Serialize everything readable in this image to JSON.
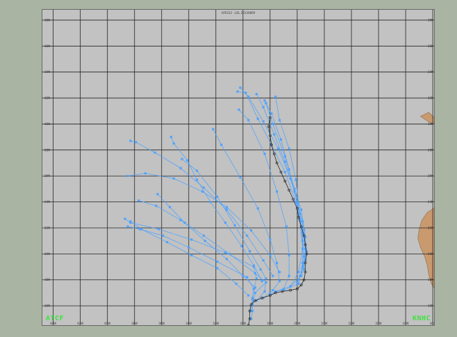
{
  "map": {
    "title": "AF6312 - LOL 20130809",
    "left_label": "ATCF",
    "right_label": "KNHC"
  },
  "colors": {
    "background": "#a9b4a2",
    "ocean": "#c2c2c2",
    "grid": "#222222",
    "forecast_tracks": "#4fa3ff",
    "best_track": "#222222",
    "land": "#c99a6e",
    "label_text": "#3fe23f"
  },
  "axes": {
    "longitude_ticks": [
      "44W",
      "42W",
      "40W",
      "38W",
      "36W",
      "34W",
      "32W",
      "30W",
      "28W",
      "26W",
      "24W",
      "22W",
      "20W",
      "18W",
      "16W"
    ],
    "latitude_ticks_left": [
      "38N",
      "36N",
      "34N",
      "32N",
      "30N",
      "28N",
      "26N",
      "24N",
      "22N",
      "20N",
      "18N",
      "16N"
    ],
    "latitude_ticks_right": [
      "38N",
      "36N",
      "34N",
      "32N",
      "30N",
      "28N",
      "26N",
      "24N",
      "22N",
      "20N",
      "18N",
      "16N"
    ],
    "lon_range": [
      -44.8,
      -15.8
    ],
    "lat_range": [
      14.4,
      38.8
    ]
  },
  "forecast_tracks": [
    [
      [
        -29.4,
        15.0
      ],
      [
        -29.3,
        15.6
      ],
      [
        -29.3,
        16.5
      ],
      [
        -29.2,
        17.3
      ],
      [
        -29.0,
        18.1
      ],
      [
        -29.2,
        19.0
      ],
      [
        -31.3,
        20.1
      ],
      [
        -33.8,
        21.1
      ],
      [
        -36.2,
        21.9
      ],
      [
        -38.3,
        22.4
      ],
      [
        -38.7,
        22.7
      ]
    ],
    [
      [
        -29.4,
        15.6
      ],
      [
        -29.3,
        16.6
      ],
      [
        -29.2,
        17.3
      ],
      [
        -29.7,
        18.2
      ],
      [
        -31.9,
        19.4
      ],
      [
        -34.0,
        20.5
      ],
      [
        -35.9,
        21.4
      ],
      [
        -37.6,
        21.9
      ],
      [
        -38.5,
        22.1
      ]
    ],
    [
      [
        -29.3,
        16.1
      ],
      [
        -29.1,
        17.0
      ],
      [
        -28.3,
        17.8
      ],
      [
        -29.1,
        18.5
      ],
      [
        -31.0,
        20.0
      ],
      [
        -32.9,
        21.4
      ],
      [
        -34.6,
        22.6
      ],
      [
        -36.4,
        23.7
      ],
      [
        -37.7,
        24.1
      ]
    ],
    [
      [
        -29.0,
        16.4
      ],
      [
        -28.4,
        17.1
      ],
      [
        -28.3,
        18.1
      ],
      [
        -28.7,
        18.8
      ],
      [
        -29.5,
        20.2
      ],
      [
        -30.6,
        22.2
      ],
      [
        -31.9,
        24.4
      ],
      [
        -33.4,
        26.4
      ],
      [
        -34.5,
        27.3
      ]
    ],
    [
      [
        -28.5,
        16.6
      ],
      [
        -27.8,
        17.2
      ],
      [
        -27.3,
        17.9
      ],
      [
        -27.5,
        19.3
      ],
      [
        -28.0,
        21.1
      ],
      [
        -28.9,
        23.5
      ],
      [
        -30.2,
        25.9
      ],
      [
        -31.6,
        28.4
      ],
      [
        -32.2,
        29.6
      ]
    ],
    [
      [
        -28.0,
        16.9
      ],
      [
        -27.0,
        17.3
      ],
      [
        -26.6,
        18.3
      ],
      [
        -26.6,
        19.9
      ],
      [
        -26.8,
        22.1
      ],
      [
        -27.5,
        24.8
      ],
      [
        -28.4,
        27.7
      ],
      [
        -29.6,
        30.3
      ],
      [
        -30.3,
        31.1
      ]
    ],
    [
      [
        -27.6,
        17.1
      ],
      [
        -26.5,
        17.5
      ],
      [
        -25.9,
        18.6
      ],
      [
        -25.6,
        20.4
      ],
      [
        -25.8,
        22.6
      ],
      [
        -26.2,
        25.0
      ],
      [
        -26.9,
        27.5
      ],
      [
        -27.8,
        30.0
      ],
      [
        -28.3,
        31.6
      ]
    ],
    [
      [
        -27.0,
        17.2
      ],
      [
        -25.9,
        17.7
      ],
      [
        -25.6,
        19.3
      ],
      [
        -25.6,
        21.0
      ],
      [
        -25.8,
        23.1
      ],
      [
        -26.1,
        25.7
      ],
      [
        -26.6,
        28.1
      ],
      [
        -27.3,
        30.3
      ],
      [
        -27.6,
        32.1
      ]
    ],
    [
      [
        -26.5,
        17.5
      ],
      [
        -25.7,
        18.3
      ],
      [
        -25.5,
        19.8
      ],
      [
        -25.6,
        21.6
      ],
      [
        -26.0,
        23.9
      ],
      [
        -26.6,
        26.5
      ],
      [
        -27.2,
        28.8
      ],
      [
        -27.9,
        30.8
      ],
      [
        -28.4,
        31.8
      ]
    ],
    [
      [
        -26.0,
        17.8
      ],
      [
        -25.5,
        18.8
      ],
      [
        -25.4,
        20.4
      ],
      [
        -25.6,
        22.5
      ],
      [
        -26.2,
        24.8
      ],
      [
        -26.9,
        27.1
      ],
      [
        -27.7,
        29.2
      ],
      [
        -28.5,
        31.3
      ],
      [
        -29.0,
        32.3
      ]
    ],
    [
      [
        -25.8,
        18.3
      ],
      [
        -25.4,
        19.5
      ],
      [
        -25.4,
        21.3
      ],
      [
        -25.7,
        23.4
      ],
      [
        -26.5,
        25.8
      ],
      [
        -27.4,
        28.1
      ],
      [
        -28.5,
        30.2
      ],
      [
        -29.6,
        32.1
      ],
      [
        -30.2,
        32.8
      ]
    ],
    [
      [
        -25.6,
        19.0
      ],
      [
        -25.3,
        20.2
      ],
      [
        -25.5,
        21.9
      ],
      [
        -26.1,
        24.0
      ],
      [
        -26.9,
        26.3
      ],
      [
        -27.9,
        28.4
      ],
      [
        -28.9,
        30.4
      ],
      [
        -29.8,
        32.4
      ],
      [
        -30.4,
        32.5
      ]
    ],
    [
      [
        -29.6,
        16.8
      ],
      [
        -30.5,
        17.7
      ],
      [
        -31.9,
        18.9
      ],
      [
        -33.8,
        19.9
      ],
      [
        -35.6,
        20.9
      ],
      [
        -37.5,
        21.9
      ],
      [
        -38.3,
        22.5
      ]
    ],
    [
      [
        -29.1,
        17.4
      ],
      [
        -30.0,
        18.3
      ],
      [
        -31.2,
        19.6
      ],
      [
        -32.8,
        21.0
      ],
      [
        -34.3,
        22.4
      ],
      [
        -35.4,
        23.6
      ],
      [
        -36.3,
        24.6
      ]
    ],
    [
      [
        -28.6,
        17.9
      ],
      [
        -29.2,
        19.1
      ],
      [
        -30.1,
        20.6
      ],
      [
        -31.3,
        22.4
      ],
      [
        -32.4,
        24.0
      ],
      [
        -33.4,
        25.7
      ],
      [
        -34.1,
        27.2
      ],
      [
        -35.1,
        28.5
      ],
      [
        -35.3,
        29.0
      ]
    ],
    [
      [
        -27.8,
        18.3
      ],
      [
        -28.5,
        19.5
      ],
      [
        -29.7,
        21.4
      ],
      [
        -31.2,
        23.4
      ],
      [
        -32.9,
        25.1
      ],
      [
        -34.6,
        26.6
      ],
      [
        -36.5,
        27.8
      ],
      [
        -37.9,
        28.6
      ],
      [
        -38.3,
        28.7
      ]
    ],
    [
      [
        -27.3,
        18.6
      ],
      [
        -28.0,
        19.9
      ],
      [
        -29.4,
        21.8
      ],
      [
        -31.2,
        23.6
      ],
      [
        -33.0,
        24.8
      ],
      [
        -35.1,
        25.8
      ],
      [
        -37.2,
        26.2
      ],
      [
        -38.5,
        26.0
      ]
    ]
  ],
  "best_track": [
    [
      -29.6,
      14.5
    ],
    [
      -29.5,
      15.0
    ],
    [
      -29.5,
      15.6
    ],
    [
      -29.4,
      16.1
    ],
    [
      -29.1,
      16.4
    ],
    [
      -28.6,
      16.6
    ],
    [
      -28.0,
      16.8
    ],
    [
      -27.6,
      17.0
    ],
    [
      -27.1,
      17.1
    ],
    [
      -26.5,
      17.2
    ],
    [
      -26.0,
      17.3
    ],
    [
      -25.7,
      17.6
    ],
    [
      -25.5,
      18.0
    ],
    [
      -25.4,
      18.6
    ],
    [
      -25.4,
      19.3
    ],
    [
      -25.3,
      20.0
    ],
    [
      -25.4,
      20.7
    ],
    [
      -25.5,
      21.4
    ],
    [
      -25.7,
      22.1
    ],
    [
      -25.9,
      22.8
    ],
    [
      -26.0,
      23.5
    ],
    [
      -26.3,
      24.2
    ],
    [
      -26.6,
      24.9
    ],
    [
      -26.9,
      25.6
    ],
    [
      -27.2,
      26.3
    ],
    [
      -27.5,
      27.0
    ],
    [
      -27.7,
      27.7
    ],
    [
      -27.9,
      28.4
    ],
    [
      -28.0,
      29.1
    ],
    [
      -28.1,
      29.8
    ],
    [
      -28.0,
      30.5
    ]
  ],
  "land_polygons": [
    [
      [
        -15.8,
        23.6
      ],
      [
        -16.4,
        23.2
      ],
      [
        -16.8,
        22.6
      ],
      [
        -17.0,
        21.9
      ],
      [
        -17.1,
        21.2
      ],
      [
        -16.9,
        20.5
      ],
      [
        -16.6,
        19.8
      ],
      [
        -16.4,
        19.1
      ],
      [
        -16.3,
        18.4
      ],
      [
        -16.1,
        17.7
      ],
      [
        -15.8,
        17.2
      ]
    ],
    [
      [
        -16.3,
        30.9
      ],
      [
        -15.9,
        30.5
      ],
      [
        -15.8,
        30.3
      ],
      [
        -16.0,
        30.0
      ],
      [
        -16.5,
        30.3
      ],
      [
        -16.9,
        30.6
      ]
    ]
  ]
}
